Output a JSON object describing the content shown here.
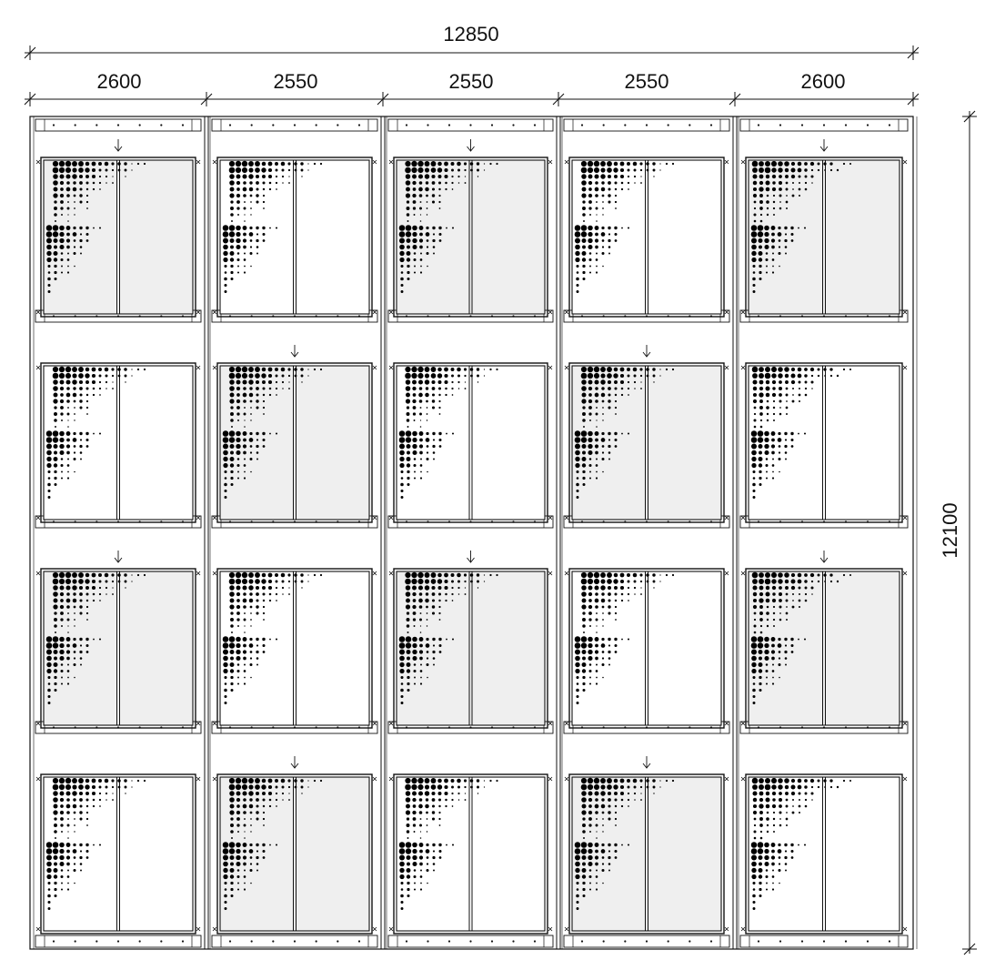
{
  "overall_width_label": "12850",
  "bay_width_labels": [
    "2600",
    "2550",
    "2550",
    "2550",
    "2600"
  ],
  "overall_height_label": "12100",
  "elevation": {
    "bays": 5,
    "floors": 4,
    "open_sash_pattern": [
      [
        true,
        false,
        true,
        false,
        true
      ],
      [
        false,
        true,
        false,
        true,
        false
      ],
      [
        true,
        false,
        true,
        false,
        true
      ],
      [
        false,
        true,
        false,
        true,
        false
      ]
    ]
  },
  "colors": {
    "line": "#111111",
    "glass_shaded": "#efefef",
    "glass_clear": "#ffffff",
    "dots": "#000000"
  }
}
